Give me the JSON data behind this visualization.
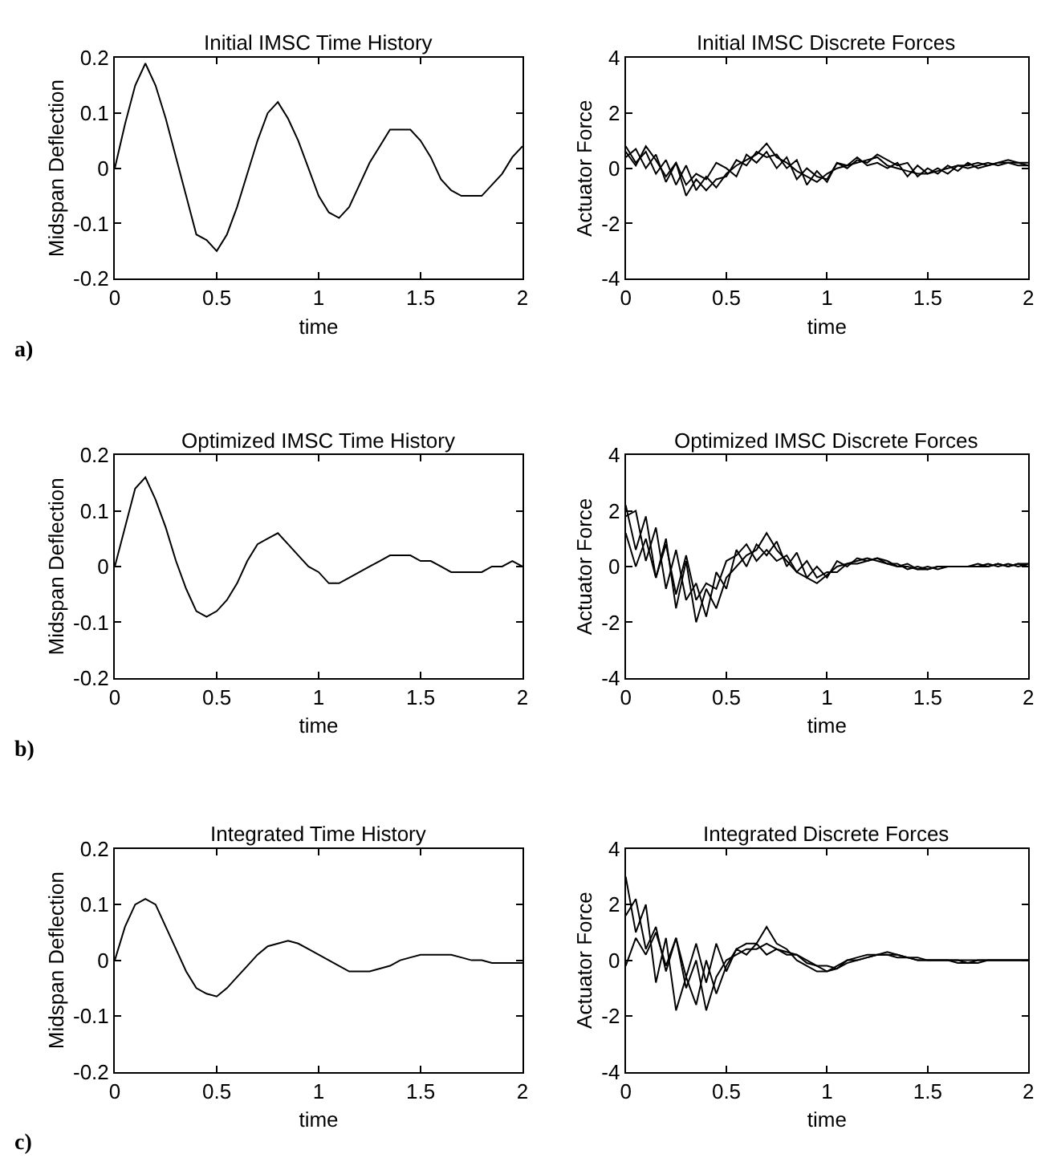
{
  "chart_data": [
    {
      "type": "line",
      "title": "Initial IMSC Time History",
      "xlabel": "time",
      "ylabel": "Midspan Deflection",
      "annotations": [
        "a)"
      ],
      "x": [
        0,
        0.05,
        0.1,
        0.15,
        0.2,
        0.25,
        0.3,
        0.35,
        0.4,
        0.45,
        0.5,
        0.55,
        0.6,
        0.65,
        0.7,
        0.75,
        0.8,
        0.85,
        0.9,
        0.95,
        1.0,
        1.05,
        1.1,
        1.15,
        1.2,
        1.25,
        1.3,
        1.35,
        1.4,
        1.45,
        1.5,
        1.55,
        1.6,
        1.65,
        1.7,
        1.75,
        1.8,
        1.85,
        1.9,
        1.95,
        2.0
      ],
      "series": [
        {
          "color": "#000000",
          "values": [
            0,
            0.08,
            0.15,
            0.19,
            0.15,
            0.09,
            0.02,
            -0.05,
            -0.12,
            -0.13,
            -0.15,
            -0.12,
            -0.07,
            -0.01,
            0.05,
            0.1,
            0.12,
            0.09,
            0.05,
            0.0,
            -0.05,
            -0.08,
            -0.09,
            -0.07,
            -0.03,
            0.01,
            0.04,
            0.07,
            0.07,
            0.07,
            0.05,
            0.02,
            -0.02,
            -0.04,
            -0.05,
            -0.05,
            -0.05,
            -0.03,
            -0.01,
            0.02,
            0.04
          ]
        }
      ],
      "xlim": [
        0,
        2
      ],
      "xticks": [
        0,
        0.5,
        1,
        1.5,
        2
      ],
      "ylim": [
        -0.2,
        0.2
      ],
      "yticks": [
        -0.2,
        -0.1,
        0,
        0.1,
        0.2
      ]
    },
    {
      "type": "line",
      "title": "Initial IMSC Discrete Forces",
      "xlabel": "time",
      "ylabel": "Actuator Force",
      "x": [
        0,
        0.05,
        0.1,
        0.15,
        0.2,
        0.25,
        0.3,
        0.35,
        0.4,
        0.45,
        0.5,
        0.55,
        0.6,
        0.65,
        0.7,
        0.75,
        0.8,
        0.85,
        0.9,
        0.95,
        1.0,
        1.05,
        1.1,
        1.15,
        1.2,
        1.25,
        1.3,
        1.35,
        1.4,
        1.45,
        1.5,
        1.55,
        1.6,
        1.65,
        1.7,
        1.75,
        1.8,
        1.85,
        1.9,
        1.95,
        2.0
      ],
      "series": [
        {
          "color": "#000000",
          "values": [
            0.8,
            0.2,
            0.6,
            -0.2,
            0.3,
            -0.6,
            0.1,
            -0.8,
            -0.3,
            -0.7,
            -0.2,
            0.1,
            0.3,
            0.5,
            0.9,
            0.4,
            0.2,
            -0.1,
            -0.3,
            -0.5,
            -0.2,
            0.0,
            0.1,
            0.2,
            0.3,
            0.4,
            0.1,
            0.0,
            -0.1,
            -0.2,
            -0.2,
            -0.1,
            0.0,
            0.1,
            0.1,
            0.2,
            0.1,
            0.2,
            0.2,
            0.1,
            0.1
          ]
        },
        {
          "color": "#000000",
          "values": [
            0.4,
            0.7,
            0.0,
            0.5,
            -0.5,
            0.2,
            -1.0,
            -0.4,
            -0.8,
            -0.4,
            -0.3,
            0.3,
            0.1,
            0.6,
            0.4,
            0.5,
            0.0,
            0.3,
            -0.6,
            -0.1,
            -0.5,
            0.2,
            0.0,
            0.3,
            0.2,
            0.5,
            0.3,
            0.1,
            0.2,
            -0.3,
            0.0,
            -0.2,
            0.1,
            -0.1,
            0.2,
            0.0,
            0.1,
            0.2,
            0.3,
            0.2,
            0.2
          ]
        },
        {
          "color": "#000000",
          "values": [
            0.6,
            0.1,
            0.8,
            0.3,
            -0.3,
            0.2,
            -0.6,
            -0.2,
            -0.4,
            0.2,
            0.0,
            -0.3,
            0.5,
            0.2,
            0.6,
            0.0,
            0.4,
            -0.4,
            0.0,
            -0.3,
            -0.4,
            0.2,
            0.1,
            0.4,
            0.1,
            0.2,
            0.0,
            0.2,
            -0.3,
            0.1,
            -0.2,
            0.0,
            -0.2,
            0.1,
            0.0,
            0.1,
            0.2,
            0.1,
            0.2,
            0.2,
            0.1
          ]
        }
      ],
      "xlim": [
        0,
        2
      ],
      "xticks": [
        0,
        0.5,
        1,
        1.5,
        2
      ],
      "ylim": [
        -4,
        4
      ],
      "yticks": [
        -4,
        -2,
        0,
        2,
        4
      ]
    },
    {
      "type": "line",
      "title": "Optimized IMSC Time History",
      "xlabel": "time",
      "ylabel": "Midspan Deflection",
      "annotations": [
        "b)"
      ],
      "x": [
        0,
        0.05,
        0.1,
        0.15,
        0.2,
        0.25,
        0.3,
        0.35,
        0.4,
        0.45,
        0.5,
        0.55,
        0.6,
        0.65,
        0.7,
        0.75,
        0.8,
        0.85,
        0.9,
        0.95,
        1.0,
        1.05,
        1.1,
        1.15,
        1.2,
        1.25,
        1.3,
        1.35,
        1.4,
        1.45,
        1.5,
        1.55,
        1.6,
        1.65,
        1.7,
        1.75,
        1.8,
        1.85,
        1.9,
        1.95,
        2.0
      ],
      "series": [
        {
          "color": "#000000",
          "values": [
            0,
            0.07,
            0.14,
            0.16,
            0.12,
            0.07,
            0.01,
            -0.04,
            -0.08,
            -0.09,
            -0.08,
            -0.06,
            -0.03,
            0.01,
            0.04,
            0.05,
            0.06,
            0.04,
            0.02,
            0.0,
            -0.01,
            -0.03,
            -0.03,
            -0.02,
            -0.01,
            0.0,
            0.01,
            0.02,
            0.02,
            0.02,
            0.01,
            0.01,
            0.0,
            -0.01,
            -0.01,
            -0.01,
            -0.01,
            0.0,
            0.0,
            0.01,
            0.0
          ]
        }
      ],
      "xlim": [
        0,
        2
      ],
      "xticks": [
        0,
        0.5,
        1,
        1.5,
        2
      ],
      "ylim": [
        -0.2,
        0.2
      ],
      "yticks": [
        -0.2,
        -0.1,
        0,
        0.1,
        0.2
      ]
    },
    {
      "type": "line",
      "title": "Optimized IMSC Discrete Forces",
      "xlabel": "time",
      "ylabel": "Actuator Force",
      "x": [
        0,
        0.05,
        0.1,
        0.15,
        0.2,
        0.25,
        0.3,
        0.35,
        0.4,
        0.45,
        0.5,
        0.55,
        0.6,
        0.65,
        0.7,
        0.75,
        0.8,
        0.85,
        0.9,
        0.95,
        1.0,
        1.05,
        1.1,
        1.15,
        1.2,
        1.25,
        1.3,
        1.35,
        1.4,
        1.45,
        1.5,
        1.55,
        1.6,
        1.65,
        1.7,
        1.75,
        1.8,
        1.85,
        1.9,
        1.95,
        2.0
      ],
      "series": [
        {
          "color": "#000000",
          "values": [
            2.2,
            0.6,
            1.8,
            -0.4,
            1.0,
            -1.5,
            0.2,
            -2.0,
            -0.8,
            -1.5,
            -0.4,
            0.0,
            0.4,
            0.6,
            1.2,
            0.6,
            0.2,
            -0.2,
            -0.4,
            -0.6,
            -0.3,
            0.0,
            0.1,
            0.2,
            0.3,
            0.2,
            0.1,
            0.0,
            0.0,
            -0.1,
            -0.1,
            0.0,
            0.0,
            0.0,
            0.0,
            0.1,
            0.0,
            0.1,
            0.0,
            0.1,
            0.1
          ]
        },
        {
          "color": "#000000",
          "values": [
            1.8,
            2.0,
            0.2,
            1.4,
            -0.8,
            0.6,
            -1.2,
            -0.6,
            -1.8,
            -0.2,
            -0.8,
            0.6,
            0.0,
            0.8,
            0.4,
            0.9,
            0.0,
            0.5,
            -0.4,
            0.0,
            -0.4,
            0.2,
            0.0,
            0.3,
            0.2,
            0.3,
            0.1,
            0.1,
            -0.1,
            0.0,
            -0.1,
            0.0,
            0.0,
            0.0,
            0.0,
            0.0,
            0.1,
            0.0,
            0.1,
            0.0,
            0.1
          ]
        },
        {
          "color": "#000000",
          "values": [
            1.2,
            0.0,
            1.0,
            -0.4,
            0.8,
            -1.0,
            0.4,
            -1.2,
            -0.6,
            -0.8,
            0.2,
            0.4,
            0.8,
            0.2,
            0.6,
            0.2,
            0.4,
            -0.2,
            0.2,
            -0.4,
            -0.2,
            -0.2,
            0.1,
            0.1,
            0.2,
            0.3,
            0.2,
            0.0,
            0.1,
            -0.1,
            0.0,
            -0.1,
            0.0,
            0.0,
            0.0,
            0.0,
            0.0,
            0.1,
            0.0,
            0.1,
            0.0
          ]
        }
      ],
      "xlim": [
        0,
        2
      ],
      "xticks": [
        0,
        0.5,
        1,
        1.5,
        2
      ],
      "ylim": [
        -4,
        4
      ],
      "yticks": [
        -4,
        -2,
        0,
        2,
        4
      ]
    },
    {
      "type": "line",
      "title": "Integrated Time History",
      "xlabel": "time",
      "ylabel": "Midspan Deflection",
      "annotations": [
        "c)"
      ],
      "x": [
        0,
        0.05,
        0.1,
        0.15,
        0.2,
        0.25,
        0.3,
        0.35,
        0.4,
        0.45,
        0.5,
        0.55,
        0.6,
        0.65,
        0.7,
        0.75,
        0.8,
        0.85,
        0.9,
        0.95,
        1.0,
        1.05,
        1.1,
        1.15,
        1.2,
        1.25,
        1.3,
        1.35,
        1.4,
        1.45,
        1.5,
        1.55,
        1.6,
        1.65,
        1.7,
        1.75,
        1.8,
        1.85,
        1.9,
        1.95,
        2.0
      ],
      "series": [
        {
          "color": "#000000",
          "values": [
            0,
            0.06,
            0.1,
            0.11,
            0.1,
            0.06,
            0.02,
            -0.02,
            -0.05,
            -0.06,
            -0.065,
            -0.05,
            -0.03,
            -0.01,
            0.01,
            0.025,
            0.03,
            0.035,
            0.03,
            0.02,
            0.01,
            0.0,
            -0.01,
            -0.02,
            -0.02,
            -0.02,
            -0.015,
            -0.01,
            0.0,
            0.005,
            0.01,
            0.01,
            0.01,
            0.01,
            0.005,
            0.0,
            0.0,
            -0.005,
            -0.005,
            -0.005,
            -0.005
          ]
        }
      ],
      "xlim": [
        0,
        2
      ],
      "xticks": [
        0,
        0.5,
        1,
        1.5,
        2
      ],
      "ylim": [
        -0.2,
        0.2
      ],
      "yticks": [
        -0.2,
        -0.1,
        0,
        0.1,
        0.2
      ]
    },
    {
      "type": "line",
      "title": "Integrated Discrete Forces",
      "xlabel": "time",
      "ylabel": "Actuator Force",
      "x": [
        0,
        0.05,
        0.1,
        0.15,
        0.2,
        0.25,
        0.3,
        0.35,
        0.4,
        0.45,
        0.5,
        0.55,
        0.6,
        0.65,
        0.7,
        0.75,
        0.8,
        0.85,
        0.9,
        0.95,
        1.0,
        1.05,
        1.1,
        1.15,
        1.2,
        1.25,
        1.3,
        1.35,
        1.4,
        1.45,
        1.5,
        1.55,
        1.6,
        1.65,
        1.7,
        1.75,
        1.8,
        1.85,
        1.9,
        1.95,
        2.0
      ],
      "series": [
        {
          "color": "#000000",
          "values": [
            3.0,
            1.0,
            2.0,
            -0.8,
            0.8,
            -1.8,
            -0.6,
            -1.6,
            0.0,
            -1.2,
            -0.2,
            0.4,
            0.6,
            0.6,
            1.2,
            0.6,
            0.4,
            0.0,
            -0.2,
            -0.4,
            -0.4,
            -0.2,
            0.0,
            0.1,
            0.2,
            0.2,
            0.3,
            0.2,
            0.1,
            0.0,
            0.0,
            0.0,
            0.0,
            -0.1,
            -0.1,
            -0.1,
            0.0,
            0.0,
            0.0,
            0.0,
            0.0
          ]
        },
        {
          "color": "#000000",
          "values": [
            1.6,
            2.2,
            0.4,
            1.2,
            -0.4,
            0.8,
            -1.0,
            0.0,
            -1.8,
            -0.6,
            0.0,
            0.2,
            0.4,
            0.4,
            0.6,
            0.4,
            0.3,
            0.2,
            0.0,
            -0.2,
            -0.4,
            -0.3,
            0.0,
            0.0,
            0.1,
            0.2,
            0.2,
            0.2,
            0.1,
            0.1,
            0.0,
            0.0,
            0.0,
            0.0,
            -0.1,
            0.0,
            0.0,
            0.0,
            0.0,
            0.0,
            0.0
          ]
        },
        {
          "color": "#000000",
          "values": [
            -0.2,
            0.8,
            0.2,
            1.0,
            -0.2,
            0.8,
            -0.6,
            0.6,
            -0.8,
            0.6,
            -0.4,
            0.4,
            0.2,
            0.6,
            0.2,
            0.4,
            0.2,
            0.2,
            -0.1,
            -0.2,
            -0.2,
            -0.3,
            -0.1,
            0.0,
            0.1,
            0.2,
            0.2,
            0.1,
            0.1,
            0.0,
            0.0,
            0.0,
            0.0,
            0.0,
            0.0,
            0.0,
            0.0,
            0.0,
            0.0,
            0.0,
            0.0
          ]
        }
      ],
      "xlim": [
        0,
        2
      ],
      "xticks": [
        0,
        0.5,
        1,
        1.5,
        2
      ],
      "ylim": [
        -4,
        4
      ],
      "yticks": [
        -4,
        -2,
        0,
        2,
        4
      ]
    }
  ]
}
